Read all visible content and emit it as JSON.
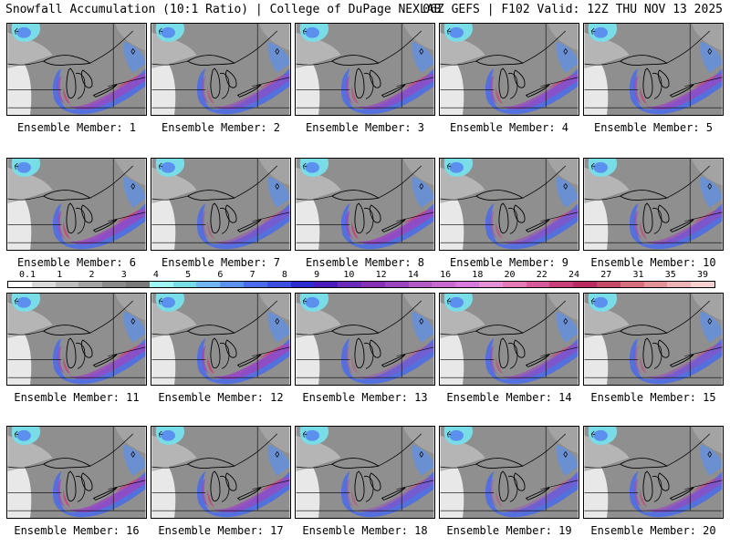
{
  "header": {
    "left_title": "Snowfall Accumulation (10:1 Ratio) | College of DuPage NEXLAB",
    "right_title": "06Z GEFS | F102 Valid: 12Z THU NOV 13 2025"
  },
  "legend": {
    "labels": [
      "0.1",
      "1",
      "2",
      "3",
      "4",
      "5",
      "6",
      "7",
      "8",
      "9",
      "10",
      "12",
      "14",
      "16",
      "18",
      "20",
      "22",
      "24",
      "27",
      "31",
      "35",
      "39"
    ],
    "colors": [
      "#ffffff",
      "#d9d9d9",
      "#bdbdbd",
      "#a3a3a3",
      "#8a8a8a",
      "#7a7a7a",
      "#9ff3f3",
      "#79dde8",
      "#6fb7f0",
      "#5b90ee",
      "#4a6bea",
      "#3b4fe0",
      "#2a2ccf",
      "#4a1cbe",
      "#6a2bb8",
      "#8530b5",
      "#9b45c0",
      "#b35ac8",
      "#c86ad0",
      "#d87adc",
      "#e58fd8",
      "#e57ab8",
      "#d65a9a",
      "#c8407a",
      "#b82c63",
      "#c64a6a",
      "#d6707f",
      "#e4929a",
      "#efb3b5",
      "#f6d3d0"
    ]
  },
  "panels": [
    {
      "label": "Ensemble Member: 1",
      "intensity": 0.75
    },
    {
      "label": "Ensemble Member: 2",
      "intensity": 0.6
    },
    {
      "label": "Ensemble Member: 3",
      "intensity": 0.7
    },
    {
      "label": "Ensemble Member: 4",
      "intensity": 0.7
    },
    {
      "label": "Ensemble Member: 5",
      "intensity": 0.75
    },
    {
      "label": "Ensemble Member: 6",
      "intensity": 0.8
    },
    {
      "label": "Ensemble Member: 7",
      "intensity": 0.45
    },
    {
      "label": "Ensemble Member: 8",
      "intensity": 0.85
    },
    {
      "label": "Ensemble Member: 9",
      "intensity": 0.55
    },
    {
      "label": "Ensemble Member: 10",
      "intensity": 0.6
    },
    {
      "label": "Ensemble Member: 11",
      "intensity": 0.75
    },
    {
      "label": "Ensemble Member: 12",
      "intensity": 0.85
    },
    {
      "label": "Ensemble Member: 13",
      "intensity": 0.4
    },
    {
      "label": "Ensemble Member: 14",
      "intensity": 0.6
    },
    {
      "label": "Ensemble Member: 15",
      "intensity": 0.5
    },
    {
      "label": "Ensemble Member: 16",
      "intensity": 0.8
    },
    {
      "label": "Ensemble Member: 17",
      "intensity": 0.75
    },
    {
      "label": "Ensemble Member: 18",
      "intensity": 0.45
    },
    {
      "label": "Ensemble Member: 19",
      "intensity": 0.4
    },
    {
      "label": "Ensemble Member: 20",
      "intensity": 0.65
    }
  ]
}
